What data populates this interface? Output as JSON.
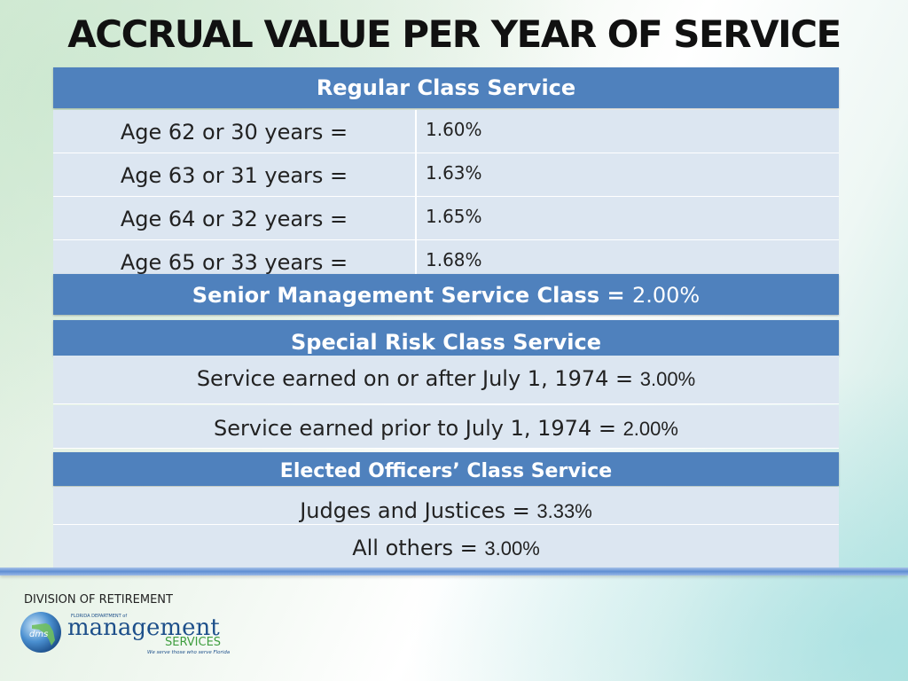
{
  "title": "ACCRUAL VALUE PER YEAR OF SERVICE",
  "regular": {
    "header": "Regular Class Service",
    "rows": [
      {
        "label": "Age 62 or 30 years =",
        "value": "1.60%"
      },
      {
        "label": "Age 63 or 31 years =",
        "value": "1.63%"
      },
      {
        "label": "Age 64 or 32 years =",
        "value": "1.65%"
      },
      {
        "label": "Age 65 or 33 years =",
        "value": "1.68%"
      }
    ]
  },
  "senior": {
    "label": "Senior Management Service Class =",
    "value": "2.00%"
  },
  "special_risk": {
    "header": "Special Risk Class Service",
    "rows": [
      {
        "label": "Service earned on or after July 1, 1974  =",
        "value": "3.00%"
      },
      {
        "label": "Service earned prior to July 1, 1974  =",
        "value": "2.00%"
      }
    ]
  },
  "elected": {
    "header": "Elected Officers’ Class Service",
    "rows": [
      {
        "label": "Judges and Justices =",
        "value": "3.33%"
      },
      {
        "label": "All others =",
        "value": "3.00%"
      }
    ]
  },
  "footer": {
    "division": "DIVISION OF RETIREMENT",
    "logo_small": "FLORIDA DEPARTMENT of",
    "logo_main": "management",
    "logo_sub": "SERVICES",
    "logo_badge": "dms",
    "tagline": "We serve those who serve Florida"
  },
  "colors": {
    "header_blue": "#4f81bd",
    "row_fill": "#dce6f1",
    "divider": "#5f8fd3"
  }
}
